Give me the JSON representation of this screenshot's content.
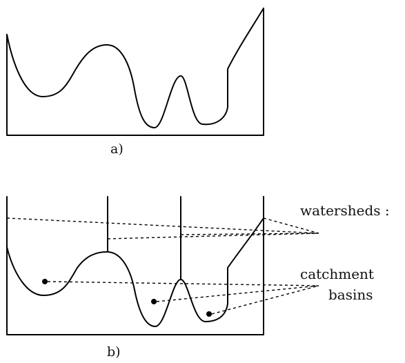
{
  "panels": {
    "a": {
      "label": "a)"
    },
    "b": {
      "label": "b)"
    }
  },
  "annotations": {
    "watersheds": "watersheds :",
    "catchment_line1": "catchment",
    "catchment_line2": "basins"
  },
  "colors": {
    "stroke": "#000000",
    "background": "#ffffff"
  }
}
